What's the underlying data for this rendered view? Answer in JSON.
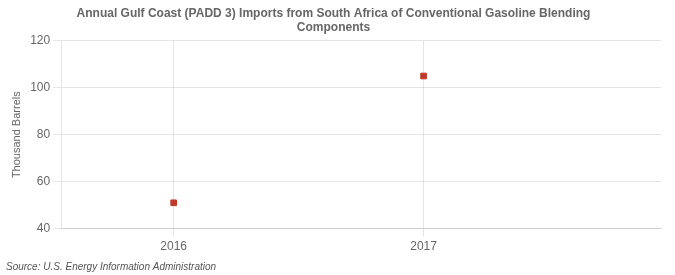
{
  "chart_data": {
    "type": "scatter",
    "title": "Annual Gulf Coast (PADD 3) Imports from South Africa of Conventional Gasoline Blending\nComponents",
    "ylabel": "Thousand Barrels",
    "source": "Source: U.S. Energy Information Administration",
    "x": [
      2016,
      2017
    ],
    "values": [
      51,
      105
    ],
    "color": "#c0392b",
    "marker": "square",
    "xlim": [
      2015.55,
      2017.95
    ],
    "ylim": [
      40,
      120
    ],
    "xticks": [
      2016,
      2017
    ],
    "yticks": [
      40,
      60,
      80,
      100,
      120
    ],
    "grid": true
  }
}
